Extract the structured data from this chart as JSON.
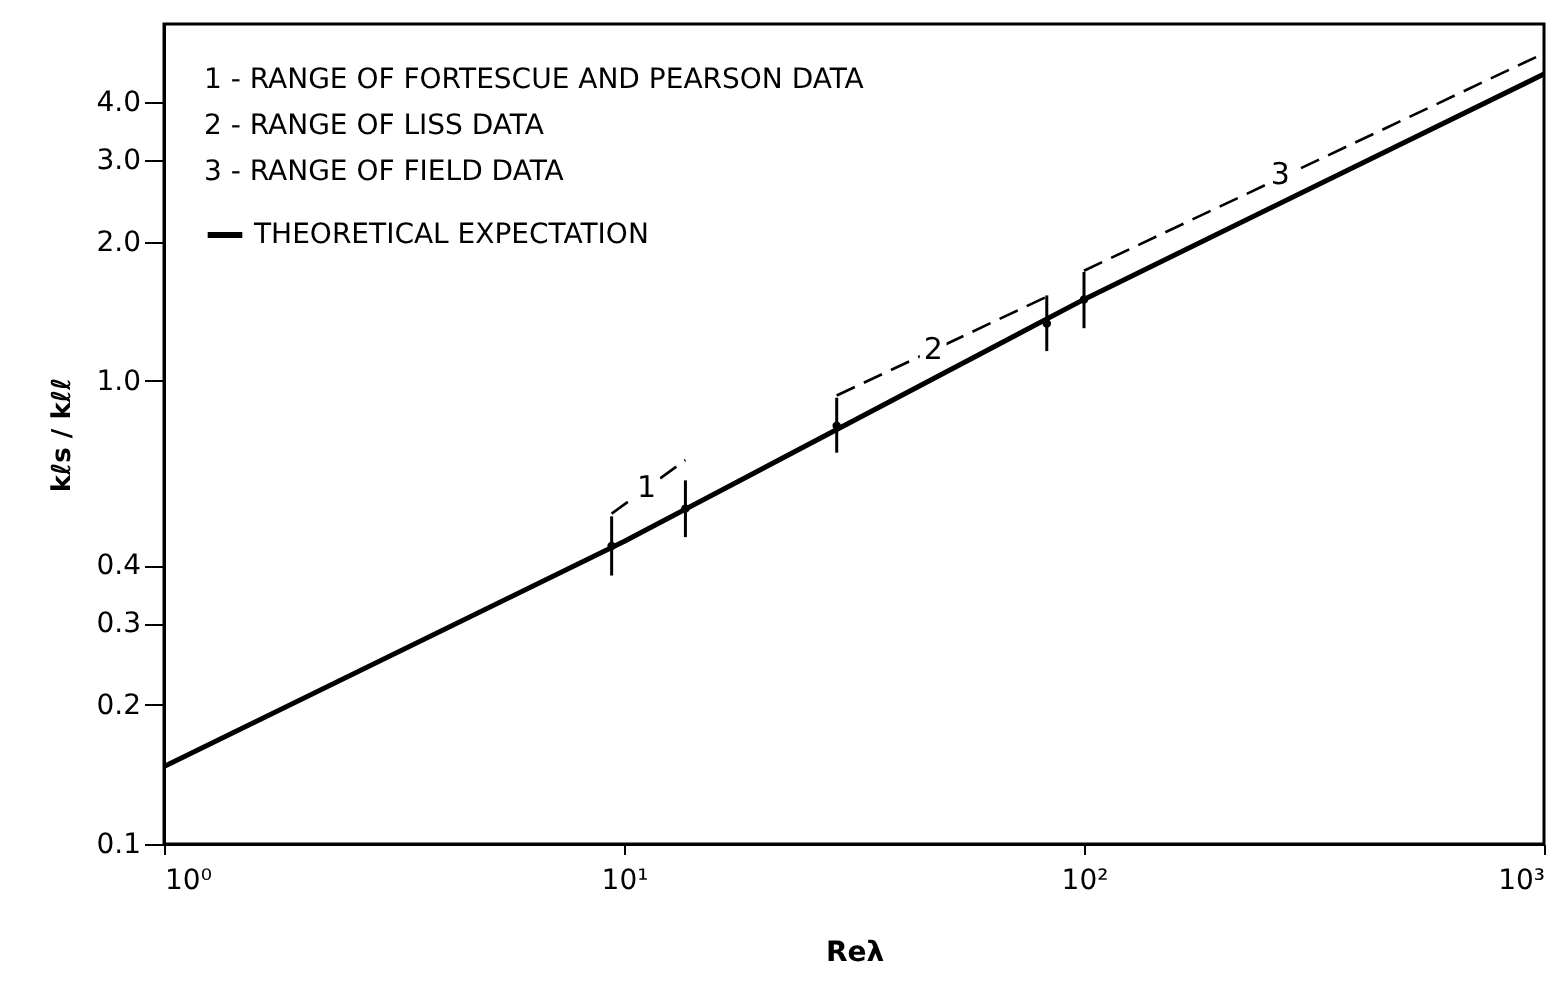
{
  "chart_data": {
    "type": "line",
    "xlabel": "Reλ",
    "ylabel": "kℓs / kℓℓ",
    "x": [
      1,
      10,
      100,
      1000
    ],
    "series": [
      {
        "name": "THEORETICAL EXPECTATION",
        "color": "#000000",
        "values": [
          0.147,
          0.45,
          1.5,
          4.6
        ]
      },
      {
        "type": "line",
        "line_style": "dashed",
        "color": "#000000",
        "x": [
          9.4,
          13.6
        ],
        "values": [
          0.517,
          0.675
        ]
      },
      {
        "type": "line",
        "line_style": "dashed",
        "color": "#000000",
        "x": [
          29,
          83
        ],
        "values": [
          0.93,
          1.52
        ]
      },
      {
        "type": "line",
        "line_style": "dashed",
        "color": "#000000",
        "x": [
          100,
          1000
        ],
        "values": [
          1.73,
          5.1
        ]
      },
      {
        "type": "scatter",
        "marker": "circle",
        "color": "#000000",
        "x": [
          9.4,
          13.6,
          29,
          83,
          100
        ],
        "values": [
          0.44,
          0.53,
          0.8,
          1.33,
          1.5
        ],
        "errors": [
          [
            0.38,
            0.51
          ],
          [
            0.46,
            0.61
          ],
          [
            0.7,
            0.92
          ],
          [
            1.16,
            1.53
          ],
          [
            1.3,
            1.72
          ]
        ]
      }
    ],
    "log": "xy",
    "xlim": [
      1,
      1000
    ],
    "ylim": [
      0.1,
      5.9
    ],
    "xticks": [
      {
        "value": 1,
        "label": "10⁰"
      },
      {
        "value": 10,
        "label": "10¹"
      },
      {
        "value": 100,
        "label": "10²"
      },
      {
        "value": 1000,
        "label": "10³"
      }
    ],
    "yticks": [
      0.1,
      0.2,
      0.3,
      0.4,
      {
        "value": 1,
        "label": "1.0"
      },
      {
        "value": 2,
        "label": "2.0"
      },
      {
        "value": 3,
        "label": "3.0"
      },
      {
        "value": 4,
        "label": "4.0"
      }
    ],
    "annotations": [
      "1 - RANGE OF FORTESCUE AND PEARSON DATA",
      "2 - RANGE OF LISS DATA",
      "3 - RANGE OF FIELD DATA",
      {
        "text": "1",
        "x": 11.2,
        "y": 0.59
      },
      {
        "text": "2",
        "x": 47,
        "y": 1.17
      },
      {
        "text": "3",
        "x": 267,
        "y": 2.8
      }
    ],
    "legend": "top left",
    "grid": false,
    "line_style": "solid",
    "marker": "none"
  }
}
